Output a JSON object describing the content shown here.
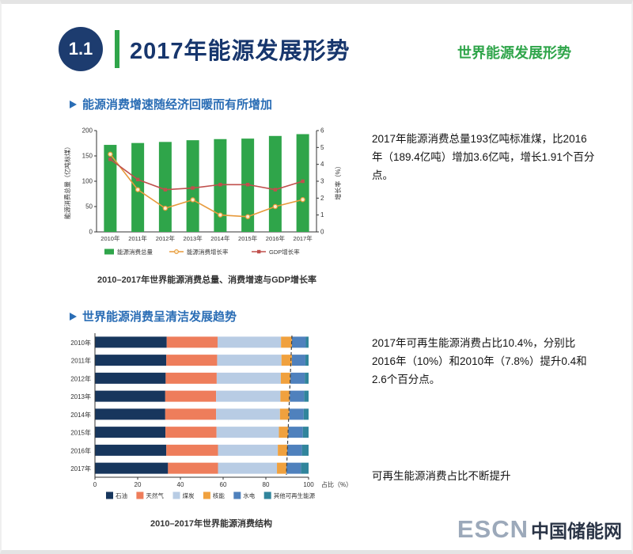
{
  "page": {
    "badge": "1.1",
    "title": "2017年能源发展形势",
    "subtitle": "世界能源发展形势"
  },
  "colors": {
    "navy": "#1d3c6f",
    "accent_green": "#2fa54a",
    "heading_blue": "#2a6db5"
  },
  "section1": {
    "heading": "能源消费增速随经济回暖而有所增加",
    "note": "2017年能源消费总量193亿吨标准煤，比2016年（189.4亿吨）增加3.6亿吨，增长1.91个百分点。",
    "caption": "2010–2017年世界能源消费总量、消费增速与GDP增长率"
  },
  "section2": {
    "heading": "世界能源消费呈清洁发展趋势",
    "note": "2017年可再生能源消费占比10.4%，分别比2016年（10%）和2010年（7.8%）提升0.4和2.6个百分点。",
    "note2": "可再生能源消费占比不断提升",
    "caption": "2010–2017年世界能源消费结构"
  },
  "footer": {
    "logo_escn": "ESCN",
    "logo_cn": "中国储能网"
  },
  "chart_data": [
    {
      "type": "bar",
      "subtype": "bar-line-combo",
      "title": "2010–2017年世界能源消费总量、消费增速与GDP增长率",
      "categories": [
        "2010年",
        "2011年",
        "2012年",
        "2013年",
        "2014年",
        "2015年",
        "2016年",
        "2017年"
      ],
      "series": [
        {
          "name": "能源消费总量",
          "type": "bar",
          "axis": "left",
          "color": "#2fa54a",
          "values": [
            171.8,
            175.5,
            177.6,
            181.0,
            183.2,
            184.2,
            189.4,
            193.0
          ]
        },
        {
          "name": "能源消费增长率",
          "type": "line",
          "axis": "right",
          "color": "#e79a3c",
          "values": [
            4.6,
            2.5,
            1.4,
            1.9,
            1.0,
            0.9,
            1.5,
            1.91
          ]
        },
        {
          "name": "GDP增长率",
          "type": "line",
          "axis": "right",
          "color": "#c0504d",
          "values": [
            4.3,
            3.1,
            2.5,
            2.6,
            2.8,
            2.8,
            2.5,
            3.0
          ]
        }
      ],
      "ylabel_left": "能源消费总量（亿吨标煤）",
      "ylabel_right": "增长率（%）",
      "ylim_left": [
        0,
        200
      ],
      "ylim_right": [
        0,
        6
      ],
      "yticks_left": [
        0,
        50,
        100,
        150,
        200
      ],
      "yticks_right": [
        0,
        1,
        2,
        3,
        4,
        5,
        6
      ],
      "legend_position": "bottom",
      "grid": false
    },
    {
      "type": "bar",
      "subtype": "horizontal-stacked",
      "title": "2010–2017年世界能源消费结构",
      "categories": [
        "2010年",
        "2011年",
        "2012年",
        "2013年",
        "2014年",
        "2015年",
        "2016年",
        "2017年"
      ],
      "series": [
        {
          "name": "石油",
          "color": "#17365d",
          "values": [
            33.6,
            33.4,
            33.1,
            32.9,
            32.9,
            33.0,
            33.4,
            34.2
          ]
        },
        {
          "name": "天然气",
          "color": "#ee7d5b",
          "values": [
            23.8,
            23.8,
            23.9,
            23.8,
            23.8,
            23.9,
            24.2,
            23.4
          ]
        },
        {
          "name": "煤炭",
          "color": "#b8cce4",
          "values": [
            29.7,
            30.1,
            30.0,
            30.1,
            29.9,
            29.2,
            28.0,
            27.6
          ]
        },
        {
          "name": "核能",
          "color": "#f0a13e",
          "values": [
            5.1,
            4.9,
            4.5,
            4.4,
            4.4,
            4.4,
            4.4,
            4.4
          ]
        },
        {
          "name": "水电",
          "color": "#4f81bd",
          "values": [
            6.5,
            6.3,
            6.7,
            6.7,
            6.7,
            6.8,
            6.9,
            6.8
          ]
        },
        {
          "name": "其他可再生能源",
          "color": "#31859c",
          "values": [
            1.3,
            1.5,
            1.8,
            2.1,
            2.3,
            2.7,
            3.1,
            3.6
          ]
        }
      ],
      "xlabel": "占比（%）",
      "xlim": [
        0,
        100
      ],
      "xticks": [
        0,
        20,
        40,
        60,
        80,
        100
      ],
      "dashed_line": {
        "from_pct": 92.2,
        "to_pct": 89.6,
        "meaning": "可再生能源（含水电）占比边界"
      },
      "legend_position": "bottom",
      "grid": false
    }
  ]
}
